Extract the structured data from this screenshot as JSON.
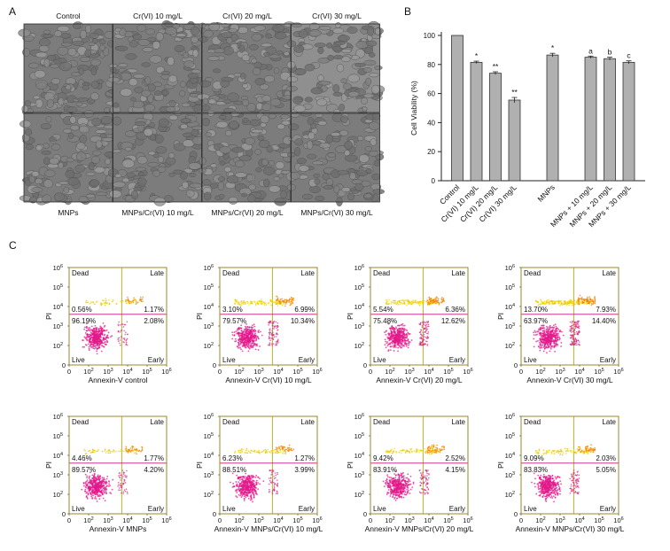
{
  "panel_labels": {
    "a": "A",
    "b": "B",
    "c": "C"
  },
  "micrographs": {
    "top_labels": [
      "Control",
      "Cr(VI) 10 mg/L",
      "Cr(VI) 20 mg/L",
      "Cr(VI) 30 mg/L"
    ],
    "bottom_labels": [
      "MNPs",
      "MNPs/Cr(VI) 10 mg/L",
      "MNPs/Cr(VI) 20 mg/L",
      "MNPs/Cr(VI) 30 mg/L"
    ]
  },
  "chart_data": [
    {
      "type": "bar",
      "ylabel": "Cell Viability (%)",
      "ylim": [
        0,
        100
      ],
      "yticks": [
        "0",
        "20",
        "40",
        "60",
        "80",
        "100"
      ],
      "categories": [
        "Control",
        "Cr(VI) 10 mg/L",
        "Cr(VI) 20 mg/L",
        "Cr(VI) 30 mg/L",
        "MNPs",
        "MNPs + 10 mg/L",
        "MNPs + 20 mg/L",
        "MNPs + 30 mg/L"
      ],
      "values": [
        100,
        81.5,
        74,
        55.5,
        86.5,
        85,
        84,
        81.5
      ],
      "errors": [
        0,
        0.8,
        1.0,
        1.8,
        1.2,
        0.8,
        1.0,
        1.0
      ],
      "annotations": [
        "",
        "*",
        "**",
        "**",
        "*",
        "a",
        "b",
        "c"
      ],
      "bar_color": "#b0b0b0"
    },
    {
      "type": "scatter",
      "subtype": "flow-cytometry-quadrants",
      "xlabel_prefix": "Annexin-V",
      "ylabel": "PI",
      "axis_ticks": [
        "0",
        "10",
        "10",
        "10",
        "10",
        "10"
      ],
      "tick_exponents": [
        "",
        "2",
        "3",
        "4",
        "5",
        "6"
      ],
      "quadrant_labels": {
        "ul": "Dead",
        "ur": "Late",
        "ll": "Live",
        "lr": "Early"
      },
      "colors": {
        "live": "#e2188a",
        "late": "#f08a00",
        "dead": "#f2e200",
        "frame": "#9a8a2a"
      },
      "plots": [
        {
          "label": "control",
          "dead": "0.56%",
          "late": "1.17%",
          "live": "96.19%",
          "early": "2.08%"
        },
        {
          "label": "Cr(VI) 10 mg/L",
          "dead": "3.10%",
          "late": "6.99%",
          "live": "79.57%",
          "early": "10.34%"
        },
        {
          "label": "Cr(VI) 20 mg/L",
          "dead": "5.54%",
          "late": "6.36%",
          "live": "75.48%",
          "early": "12.62%"
        },
        {
          "label": "Cr(VI) 30 mg/L",
          "dead": "13.70%",
          "late": "7.93%",
          "live": "63.97%",
          "early": "14.40%"
        },
        {
          "label": "MNPs",
          "dead": "4.46%",
          "late": "1.77%",
          "live": "89.57%",
          "early": "4.20%"
        },
        {
          "label": "MNPs/Cr(VI) 10 mg/L",
          "dead": "6.23%",
          "late": "1.27%",
          "live": "88.51%",
          "early": "3.99%"
        },
        {
          "label": "MNPs/Cr(VI) 20 mg/L",
          "dead": "9.42%",
          "late": "2.52%",
          "live": "83.91%",
          "early": "4.15%"
        },
        {
          "label": "MNPs/Cr(VI) 30 mg/L",
          "dead": "9.09%",
          "late": "2.03%",
          "live": "83.83%",
          "early": "5.05%"
        }
      ]
    }
  ]
}
